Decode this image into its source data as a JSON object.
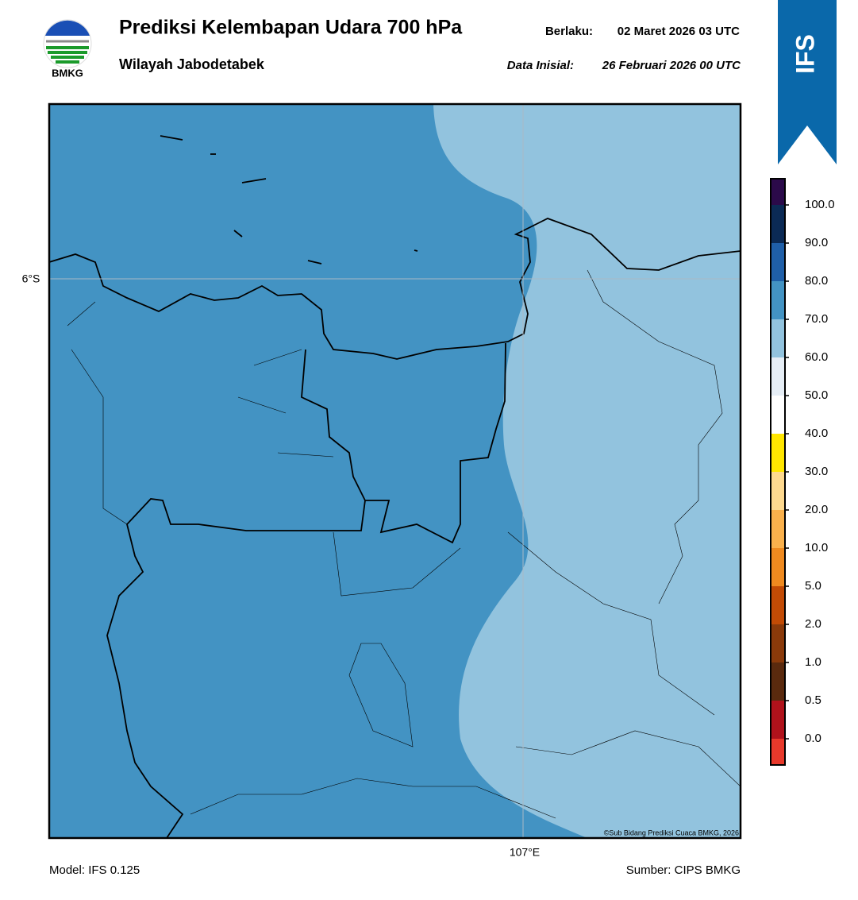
{
  "header": {
    "title": "Prediksi Kelembapan Udara 700 hPa",
    "subtitle": "Wilayah Jabodetabek",
    "valid_label": "Berlaku:",
    "valid_time": "02 Maret 2026 03 UTC",
    "init_label": "Data Inisial:",
    "init_time": "26 Februari 2026 00 UTC",
    "logo_text": "BMKG",
    "badge": "IFS"
  },
  "map": {
    "lat_label": "6°S",
    "lon_label": "107°E",
    "credit": "©Sub Bidang Prediksi Cuaca BMKG, 2026"
  },
  "colorbar": {
    "labels": [
      "0.0",
      "0.5",
      "1.0",
      "2.0",
      "5.0",
      "10.0",
      "20.0",
      "30.0",
      "40.0",
      "50.0",
      "60.0",
      "70.0",
      "80.0",
      "90.0",
      "100.0"
    ],
    "colors": [
      "#e8392b",
      "#b0121b",
      "#5a2a0e",
      "#8a3a0a",
      "#c24b05",
      "#ef8a1f",
      "#fab14c",
      "#fed98f",
      "#ffe600",
      "#ffffff",
      "#e6eef6",
      "#92c3de",
      "#4393c3",
      "#1f5fa8",
      "#0b2a55",
      "#2b0a4a"
    ]
  },
  "footer": {
    "model": "Model: IFS 0.125",
    "source": "Sumber: CIPS BMKG"
  }
}
